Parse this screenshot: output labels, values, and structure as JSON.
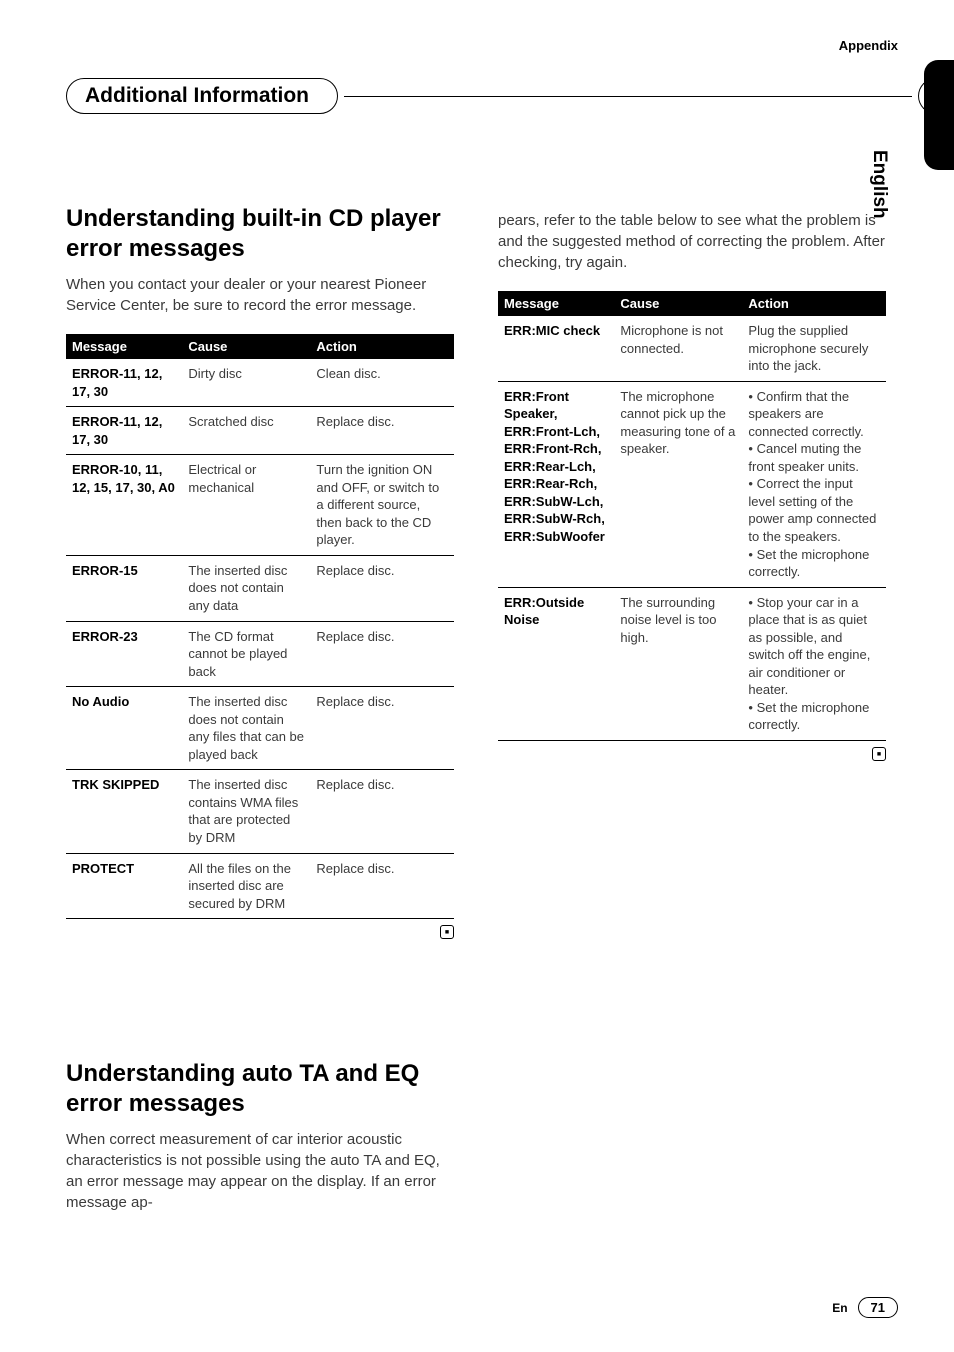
{
  "appendix_label": "Appendix",
  "section_title": "Additional Information",
  "language_tab": "English",
  "left": {
    "heading1": "Understanding built-in CD player error messages",
    "intro1": "When you contact your dealer or your nearest Pioneer Service Center, be sure to record the error message.",
    "table1": {
      "headers": [
        "Message",
        "Cause",
        "Action"
      ],
      "rows": [
        [
          "ERROR-11, 12, 17, 30",
          "Dirty disc",
          "Clean disc."
        ],
        [
          "ERROR-11, 12, 17, 30",
          "Scratched disc",
          "Replace disc."
        ],
        [
          "ERROR-10, 11, 12, 15, 17, 30, A0",
          "Electrical or mechanical",
          "Turn the ignition ON and OFF, or switch to a different source, then back to the CD player."
        ],
        [
          "ERROR-15",
          "The inserted disc does not contain any data",
          "Replace disc."
        ],
        [
          "ERROR-23",
          "The CD format cannot be played back",
          "Replace disc."
        ],
        [
          "No Audio",
          "The inserted disc does not contain any files that can be played back",
          "Replace disc."
        ],
        [
          "TRK SKIPPED",
          "The inserted disc contains WMA files that are protected by DRM",
          "Replace disc."
        ],
        [
          "PROTECT",
          "All the files on the inserted disc are secured by DRM",
          "Replace disc."
        ]
      ]
    },
    "heading2": "Understanding auto TA and EQ error messages",
    "intro2": "When correct measurement of car interior acoustic characteristics is not possible using the auto TA and EQ, an error message may appear on the display. If an error message ap-"
  },
  "right": {
    "continuation": "pears, refer to the table below to see what the problem is and the suggested method of correcting the problem. After checking, try again.",
    "table2": {
      "headers": [
        "Message",
        "Cause",
        "Action"
      ],
      "rows": [
        [
          "ERR:MIC check",
          "Microphone is not connected.",
          "Plug the supplied microphone securely into the jack."
        ],
        [
          "ERR:Front Speaker, ERR:Front-Lch, ERR:Front-Rch, ERR:Rear-Lch, ERR:Rear-Rch, ERR:SubW-Lch, ERR:SubW-Rch, ERR:SubWoofer",
          "The microphone cannot pick up the measuring tone of a speaker.",
          "• Confirm that the speakers are connected correctly.\n• Cancel muting the front speaker units.\n• Correct the input level setting of the power amp connected to the speakers.\n• Set the microphone correctly."
        ],
        [
          "ERR:Outside Noise",
          "The surrounding noise level is too high.",
          "• Stop your car in a place that is as quiet as possible, and switch off the engine, air conditioner or heater.\n• Set the microphone correctly."
        ]
      ]
    }
  },
  "footer": {
    "lang": "En",
    "page": "71"
  }
}
